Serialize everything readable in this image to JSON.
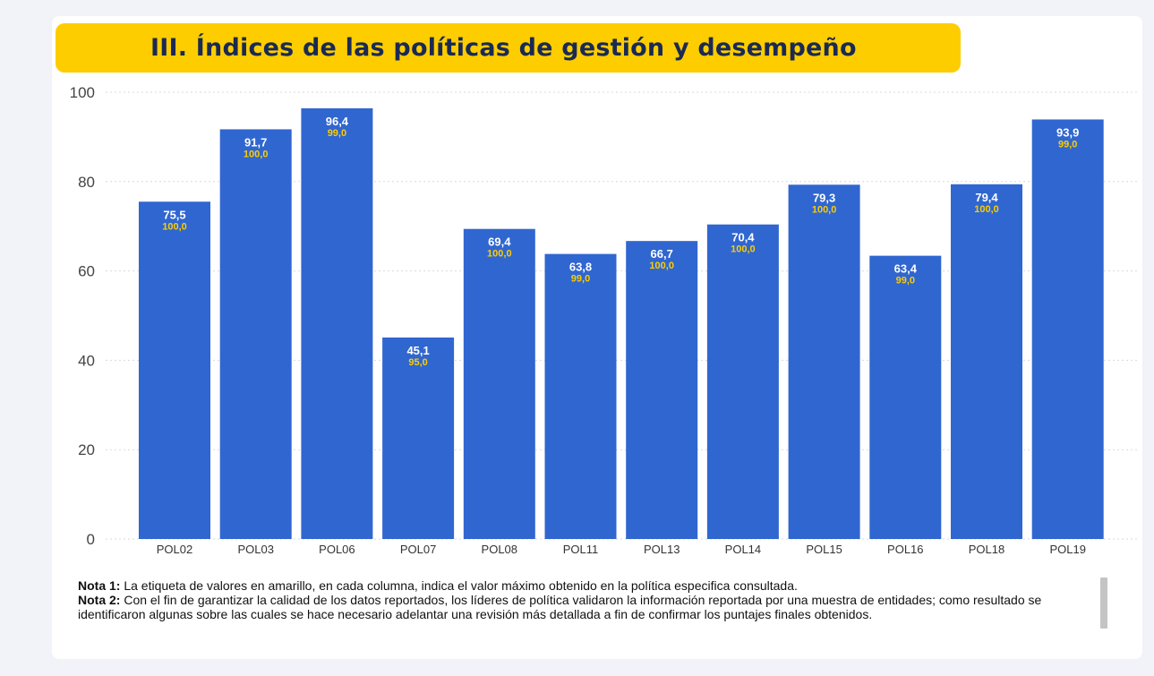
{
  "title": "III. Índices de las políticas de gestión y desempeño",
  "colors": {
    "banner": "#fdcd00",
    "bar": "#3066d0",
    "value_label": "#ffffff",
    "max_label": "#fdcd00",
    "grid": "#d7d9e0",
    "axis_text": "#444444"
  },
  "chart_data": {
    "type": "bar",
    "categories": [
      "POL02",
      "POL03",
      "POL06",
      "POL07",
      "POL08",
      "POL11",
      "POL13",
      "POL14",
      "POL15",
      "POL16",
      "POL18",
      "POL19"
    ],
    "values": [
      75.5,
      91.7,
      96.4,
      45.1,
      69.4,
      63.8,
      66.7,
      70.4,
      79.3,
      63.4,
      79.4,
      93.9
    ],
    "value_labels": [
      "75,5",
      "91,7",
      "96,4",
      "45,1",
      "69,4",
      "63,8",
      "66,7",
      "70,4",
      "79,3",
      "63,4",
      "79,4",
      "93,9"
    ],
    "max_values": [
      100.0,
      100.0,
      99.0,
      95.0,
      100.0,
      99.0,
      100.0,
      100.0,
      100.0,
      99.0,
      100.0,
      99.0
    ],
    "max_labels": [
      "100,0",
      "100,0",
      "99,0",
      "95,0",
      "100,0",
      "99,0",
      "100,0",
      "100,0",
      "100,0",
      "99,0",
      "100,0",
      "99,0"
    ],
    "ylim": [
      0,
      100
    ],
    "yticks": [
      "0",
      "20",
      "40",
      "60",
      "80",
      "100"
    ],
    "grid": true,
    "legend": "none"
  },
  "notes": [
    {
      "label": "Nota 1:",
      "text": " La etiqueta de valores en amarillo, en cada columna, indica el valor máximo obtenido en la política especifica consultada."
    },
    {
      "label": "Nota 2:",
      "text": " Con el fin de garantizar la calidad de los datos reportados, los líderes de política validaron la información reportada por una muestra de entidades; como resultado se identificaron algunas sobre las cuales se hace necesario adelantar una revisión más detallada a fin de confirmar los puntajes finales obtenidos."
    }
  ]
}
